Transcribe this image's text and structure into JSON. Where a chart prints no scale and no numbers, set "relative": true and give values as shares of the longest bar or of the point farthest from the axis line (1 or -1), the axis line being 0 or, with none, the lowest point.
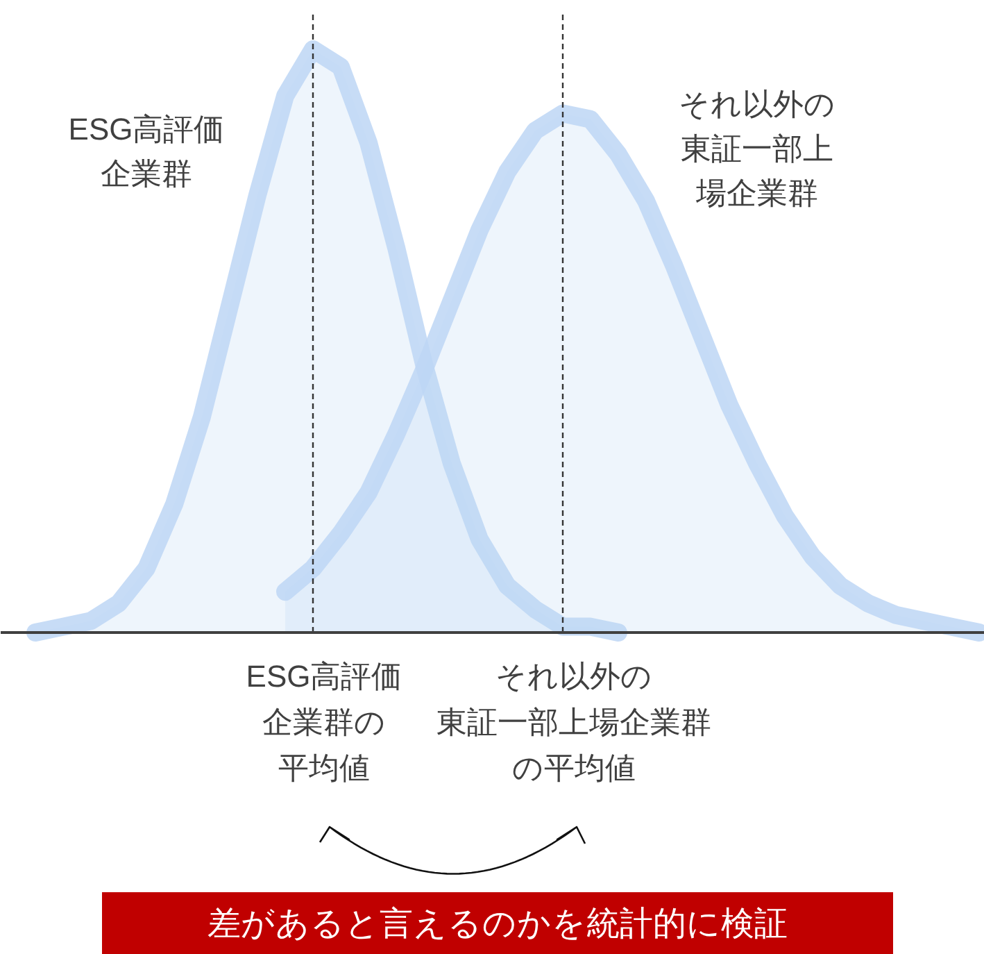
{
  "chart_data": {
    "type": "area",
    "relative": true,
    "grid": false,
    "categories": [
      null,
      null,
      null,
      null,
      null,
      null,
      null,
      null,
      null,
      null,
      null,
      null,
      null,
      null,
      null,
      null,
      null,
      null,
      null,
      null,
      null,
      null,
      null,
      null,
      null,
      null,
      null,
      null,
      null,
      null,
      null,
      null,
      null,
      null,
      null
    ],
    "series": [
      {
        "name": "ESG高評価企業群",
        "color": "#bdd6f5",
        "values": [
          0.0,
          0.01,
          0.02,
          0.05,
          0.11,
          0.22,
          0.37,
          0.56,
          0.75,
          0.92,
          1.0,
          0.97,
          0.84,
          0.66,
          0.46,
          0.29,
          0.16,
          0.08,
          0.04,
          0.01,
          0.01,
          0.0,
          null,
          null,
          null,
          null,
          null,
          null,
          null,
          null,
          null,
          null,
          null,
          null,
          null
        ]
      },
      {
        "name": "それ以外の東証一部上場企業群",
        "color": "#bdd6f5",
        "values": [
          null,
          null,
          null,
          null,
          null,
          null,
          null,
          null,
          null,
          0.07,
          0.11,
          0.17,
          0.24,
          0.34,
          0.45,
          0.57,
          0.69,
          0.79,
          0.86,
          0.89,
          0.88,
          0.82,
          0.74,
          0.63,
          0.51,
          0.39,
          0.29,
          0.2,
          0.13,
          0.08,
          0.05,
          0.03,
          0.02,
          0.01,
          0.0
        ]
      }
    ],
    "annotations": [
      "ESG高評価企業群の平均値",
      "それ以外の東証一部上場企業群の平均値",
      "差があると言えるのかを統計的に検証"
    ]
  }
}
